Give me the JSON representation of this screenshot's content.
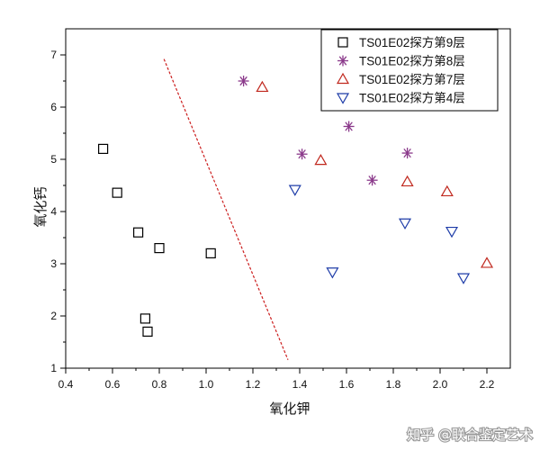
{
  "chart_data": {
    "type": "scatter",
    "title": "",
    "xlabel": "氧化钾",
    "ylabel": "氧化钙",
    "xlim": [
      0.4,
      2.3
    ],
    "ylim": [
      1,
      7.5
    ],
    "xticks": [
      "0.4",
      "0.6",
      "0.8",
      "1.0",
      "1.2",
      "1.4",
      "1.6",
      "1.8",
      "2.0",
      "2.2"
    ],
    "yticks": [
      "1",
      "2",
      "3",
      "4",
      "5",
      "6",
      "7"
    ],
    "legend_position": "top-right",
    "series": [
      {
        "name": "TS01E02探方第9层",
        "marker": "square",
        "color": "#000000",
        "points": [
          [
            0.56,
            5.2
          ],
          [
            0.62,
            4.36
          ],
          [
            0.71,
            3.6
          ],
          [
            0.8,
            3.3
          ],
          [
            1.02,
            3.2
          ],
          [
            0.74,
            1.95
          ],
          [
            0.75,
            1.7
          ]
        ]
      },
      {
        "name": "TS01E02探方第8层",
        "marker": "asterisk",
        "color": "#8b3a8b",
        "points": [
          [
            1.16,
            6.5
          ],
          [
            1.41,
            5.1
          ],
          [
            1.61,
            5.63
          ],
          [
            1.71,
            4.6
          ],
          [
            1.86,
            5.12
          ]
        ]
      },
      {
        "name": "TS01E02探方第7层",
        "marker": "triangle-up",
        "color": "#c0281e",
        "points": [
          [
            1.24,
            6.38
          ],
          [
            1.49,
            4.98
          ],
          [
            1.86,
            4.57
          ],
          [
            2.03,
            4.38
          ],
          [
            2.2,
            3.01
          ]
        ]
      },
      {
        "name": "TS01E02探方第4层",
        "marker": "triangle-down",
        "color": "#1e3ca8",
        "points": [
          [
            1.38,
            4.42
          ],
          [
            1.54,
            2.84
          ],
          [
            1.85,
            3.78
          ],
          [
            2.05,
            3.62
          ],
          [
            2.1,
            2.73
          ]
        ]
      }
    ],
    "annotations": [
      {
        "type": "dashed-line",
        "color": "#cc1f1f",
        "from": [
          0.82,
          6.92
        ],
        "to": [
          1.35,
          1.16
        ]
      }
    ]
  },
  "watermark": {
    "text": "知乎 @联合鉴定艺术"
  }
}
